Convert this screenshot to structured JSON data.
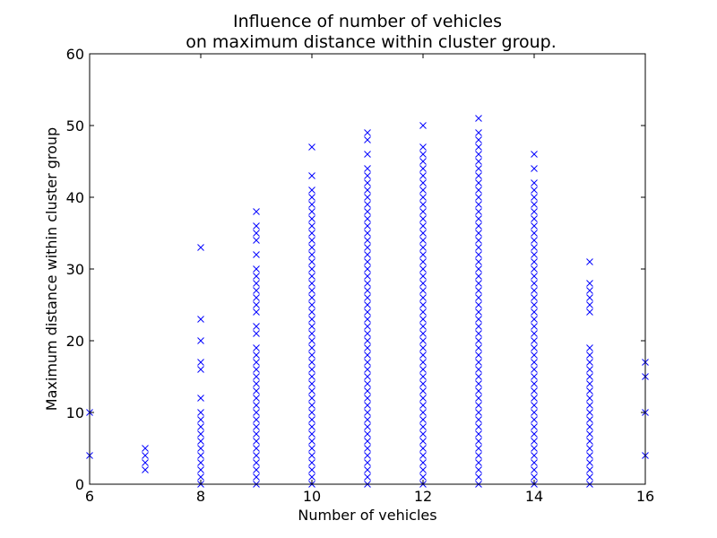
{
  "chart_data": {
    "type": "scatter",
    "title_line1": "Influence of number of vehicles",
    "title_line2": "on maximum distance within cluster group.",
    "xlabel": "Number of vehicles",
    "ylabel": "Maximum distance within cluster group",
    "xlim": [
      6,
      16
    ],
    "ylim": [
      0,
      60
    ],
    "xticks": [
      6,
      8,
      10,
      12,
      14,
      16
    ],
    "yticks": [
      0,
      10,
      20,
      30,
      40,
      50,
      60
    ],
    "marker": "x",
    "color": "#0000ff",
    "grid": false,
    "series": [
      {
        "points": [
          [
            6,
            4
          ],
          [
            6,
            10
          ],
          [
            7,
            2
          ],
          [
            7,
            3
          ],
          [
            7,
            4
          ],
          [
            7,
            5
          ],
          [
            8,
            0
          ],
          [
            8,
            1
          ],
          [
            8,
            2
          ],
          [
            8,
            3
          ],
          [
            8,
            4
          ],
          [
            8,
            5
          ],
          [
            8,
            6
          ],
          [
            8,
            7
          ],
          [
            8,
            8
          ],
          [
            8,
            9
          ],
          [
            8,
            10
          ],
          [
            8,
            12
          ],
          [
            8,
            16
          ],
          [
            8,
            17
          ],
          [
            8,
            20
          ],
          [
            8,
            23
          ],
          [
            8,
            33
          ],
          [
            9,
            0
          ],
          [
            9,
            1
          ],
          [
            9,
            2
          ],
          [
            9,
            3
          ],
          [
            9,
            4
          ],
          [
            9,
            5
          ],
          [
            9,
            6
          ],
          [
            9,
            7
          ],
          [
            9,
            8
          ],
          [
            9,
            9
          ],
          [
            9,
            10
          ],
          [
            9,
            11
          ],
          [
            9,
            12
          ],
          [
            9,
            13
          ],
          [
            9,
            14
          ],
          [
            9,
            15
          ],
          [
            9,
            16
          ],
          [
            9,
            17
          ],
          [
            9,
            18
          ],
          [
            9,
            19
          ],
          [
            9,
            21
          ],
          [
            9,
            22
          ],
          [
            9,
            24
          ],
          [
            9,
            25
          ],
          [
            9,
            26
          ],
          [
            9,
            27
          ],
          [
            9,
            28
          ],
          [
            9,
            29
          ],
          [
            9,
            30
          ],
          [
            9,
            32
          ],
          [
            9,
            34
          ],
          [
            9,
            35
          ],
          [
            9,
            36
          ],
          [
            9,
            38
          ],
          [
            10,
            0
          ],
          [
            10,
            1
          ],
          [
            10,
            2
          ],
          [
            10,
            3
          ],
          [
            10,
            4
          ],
          [
            10,
            5
          ],
          [
            10,
            6
          ],
          [
            10,
            7
          ],
          [
            10,
            8
          ],
          [
            10,
            9
          ],
          [
            10,
            10
          ],
          [
            10,
            11
          ],
          [
            10,
            12
          ],
          [
            10,
            13
          ],
          [
            10,
            14
          ],
          [
            10,
            15
          ],
          [
            10,
            16
          ],
          [
            10,
            17
          ],
          [
            10,
            18
          ],
          [
            10,
            19
          ],
          [
            10,
            20
          ],
          [
            10,
            21
          ],
          [
            10,
            22
          ],
          [
            10,
            23
          ],
          [
            10,
            24
          ],
          [
            10,
            25
          ],
          [
            10,
            26
          ],
          [
            10,
            27
          ],
          [
            10,
            28
          ],
          [
            10,
            29
          ],
          [
            10,
            30
          ],
          [
            10,
            31
          ],
          [
            10,
            32
          ],
          [
            10,
            33
          ],
          [
            10,
            34
          ],
          [
            10,
            35
          ],
          [
            10,
            36
          ],
          [
            10,
            37
          ],
          [
            10,
            38
          ],
          [
            10,
            39
          ],
          [
            10,
            40
          ],
          [
            10,
            41
          ],
          [
            10,
            43
          ],
          [
            10,
            47
          ],
          [
            11,
            0
          ],
          [
            11,
            1
          ],
          [
            11,
            2
          ],
          [
            11,
            3
          ],
          [
            11,
            4
          ],
          [
            11,
            5
          ],
          [
            11,
            6
          ],
          [
            11,
            7
          ],
          [
            11,
            8
          ],
          [
            11,
            9
          ],
          [
            11,
            10
          ],
          [
            11,
            11
          ],
          [
            11,
            12
          ],
          [
            11,
            13
          ],
          [
            11,
            14
          ],
          [
            11,
            15
          ],
          [
            11,
            16
          ],
          [
            11,
            17
          ],
          [
            11,
            18
          ],
          [
            11,
            19
          ],
          [
            11,
            20
          ],
          [
            11,
            21
          ],
          [
            11,
            22
          ],
          [
            11,
            23
          ],
          [
            11,
            24
          ],
          [
            11,
            25
          ],
          [
            11,
            26
          ],
          [
            11,
            27
          ],
          [
            11,
            28
          ],
          [
            11,
            29
          ],
          [
            11,
            30
          ],
          [
            11,
            31
          ],
          [
            11,
            32
          ],
          [
            11,
            33
          ],
          [
            11,
            34
          ],
          [
            11,
            35
          ],
          [
            11,
            36
          ],
          [
            11,
            37
          ],
          [
            11,
            38
          ],
          [
            11,
            39
          ],
          [
            11,
            40
          ],
          [
            11,
            41
          ],
          [
            11,
            42
          ],
          [
            11,
            43
          ],
          [
            11,
            44
          ],
          [
            11,
            46
          ],
          [
            11,
            48
          ],
          [
            11,
            49
          ],
          [
            12,
            0
          ],
          [
            12,
            1
          ],
          [
            12,
            2
          ],
          [
            12,
            3
          ],
          [
            12,
            4
          ],
          [
            12,
            5
          ],
          [
            12,
            6
          ],
          [
            12,
            7
          ],
          [
            12,
            8
          ],
          [
            12,
            9
          ],
          [
            12,
            10
          ],
          [
            12,
            11
          ],
          [
            12,
            12
          ],
          [
            12,
            13
          ],
          [
            12,
            14
          ],
          [
            12,
            15
          ],
          [
            12,
            16
          ],
          [
            12,
            17
          ],
          [
            12,
            18
          ],
          [
            12,
            19
          ],
          [
            12,
            20
          ],
          [
            12,
            21
          ],
          [
            12,
            22
          ],
          [
            12,
            23
          ],
          [
            12,
            24
          ],
          [
            12,
            25
          ],
          [
            12,
            26
          ],
          [
            12,
            27
          ],
          [
            12,
            28
          ],
          [
            12,
            29
          ],
          [
            12,
            30
          ],
          [
            12,
            31
          ],
          [
            12,
            32
          ],
          [
            12,
            33
          ],
          [
            12,
            34
          ],
          [
            12,
            35
          ],
          [
            12,
            36
          ],
          [
            12,
            37
          ],
          [
            12,
            38
          ],
          [
            12,
            39
          ],
          [
            12,
            40
          ],
          [
            12,
            41
          ],
          [
            12,
            42
          ],
          [
            12,
            43
          ],
          [
            12,
            44
          ],
          [
            12,
            45
          ],
          [
            12,
            46
          ],
          [
            12,
            47
          ],
          [
            12,
            50
          ],
          [
            13,
            0
          ],
          [
            13,
            1
          ],
          [
            13,
            2
          ],
          [
            13,
            3
          ],
          [
            13,
            4
          ],
          [
            13,
            5
          ],
          [
            13,
            6
          ],
          [
            13,
            7
          ],
          [
            13,
            8
          ],
          [
            13,
            9
          ],
          [
            13,
            10
          ],
          [
            13,
            11
          ],
          [
            13,
            12
          ],
          [
            13,
            13
          ],
          [
            13,
            14
          ],
          [
            13,
            15
          ],
          [
            13,
            16
          ],
          [
            13,
            17
          ],
          [
            13,
            18
          ],
          [
            13,
            19
          ],
          [
            13,
            20
          ],
          [
            13,
            21
          ],
          [
            13,
            22
          ],
          [
            13,
            23
          ],
          [
            13,
            24
          ],
          [
            13,
            25
          ],
          [
            13,
            26
          ],
          [
            13,
            27
          ],
          [
            13,
            28
          ],
          [
            13,
            29
          ],
          [
            13,
            30
          ],
          [
            13,
            31
          ],
          [
            13,
            32
          ],
          [
            13,
            33
          ],
          [
            13,
            34
          ],
          [
            13,
            35
          ],
          [
            13,
            36
          ],
          [
            13,
            37
          ],
          [
            13,
            38
          ],
          [
            13,
            39
          ],
          [
            13,
            40
          ],
          [
            13,
            41
          ],
          [
            13,
            42
          ],
          [
            13,
            43
          ],
          [
            13,
            44
          ],
          [
            13,
            45
          ],
          [
            13,
            46
          ],
          [
            13,
            47
          ],
          [
            13,
            48
          ],
          [
            13,
            49
          ],
          [
            13,
            51
          ],
          [
            14,
            0
          ],
          [
            14,
            1
          ],
          [
            14,
            2
          ],
          [
            14,
            3
          ],
          [
            14,
            4
          ],
          [
            14,
            5
          ],
          [
            14,
            6
          ],
          [
            14,
            7
          ],
          [
            14,
            8
          ],
          [
            14,
            9
          ],
          [
            14,
            10
          ],
          [
            14,
            11
          ],
          [
            14,
            12
          ],
          [
            14,
            13
          ],
          [
            14,
            14
          ],
          [
            14,
            15
          ],
          [
            14,
            16
          ],
          [
            14,
            17
          ],
          [
            14,
            18
          ],
          [
            14,
            19
          ],
          [
            14,
            20
          ],
          [
            14,
            21
          ],
          [
            14,
            22
          ],
          [
            14,
            23
          ],
          [
            14,
            24
          ],
          [
            14,
            25
          ],
          [
            14,
            26
          ],
          [
            14,
            27
          ],
          [
            14,
            28
          ],
          [
            14,
            29
          ],
          [
            14,
            30
          ],
          [
            14,
            31
          ],
          [
            14,
            32
          ],
          [
            14,
            33
          ],
          [
            14,
            34
          ],
          [
            14,
            35
          ],
          [
            14,
            36
          ],
          [
            14,
            37
          ],
          [
            14,
            38
          ],
          [
            14,
            39
          ],
          [
            14,
            40
          ],
          [
            14,
            41
          ],
          [
            14,
            42
          ],
          [
            14,
            44
          ],
          [
            14,
            46
          ],
          [
            15,
            0
          ],
          [
            15,
            1
          ],
          [
            15,
            2
          ],
          [
            15,
            3
          ],
          [
            15,
            4
          ],
          [
            15,
            5
          ],
          [
            15,
            6
          ],
          [
            15,
            7
          ],
          [
            15,
            8
          ],
          [
            15,
            9
          ],
          [
            15,
            10
          ],
          [
            15,
            11
          ],
          [
            15,
            12
          ],
          [
            15,
            13
          ],
          [
            15,
            14
          ],
          [
            15,
            15
          ],
          [
            15,
            16
          ],
          [
            15,
            17
          ],
          [
            15,
            18
          ],
          [
            15,
            19
          ],
          [
            15,
            24
          ],
          [
            15,
            25
          ],
          [
            15,
            26
          ],
          [
            15,
            27
          ],
          [
            15,
            28
          ],
          [
            15,
            31
          ],
          [
            16,
            4
          ],
          [
            16,
            10
          ],
          [
            16,
            15
          ],
          [
            16,
            17
          ]
        ]
      }
    ]
  }
}
